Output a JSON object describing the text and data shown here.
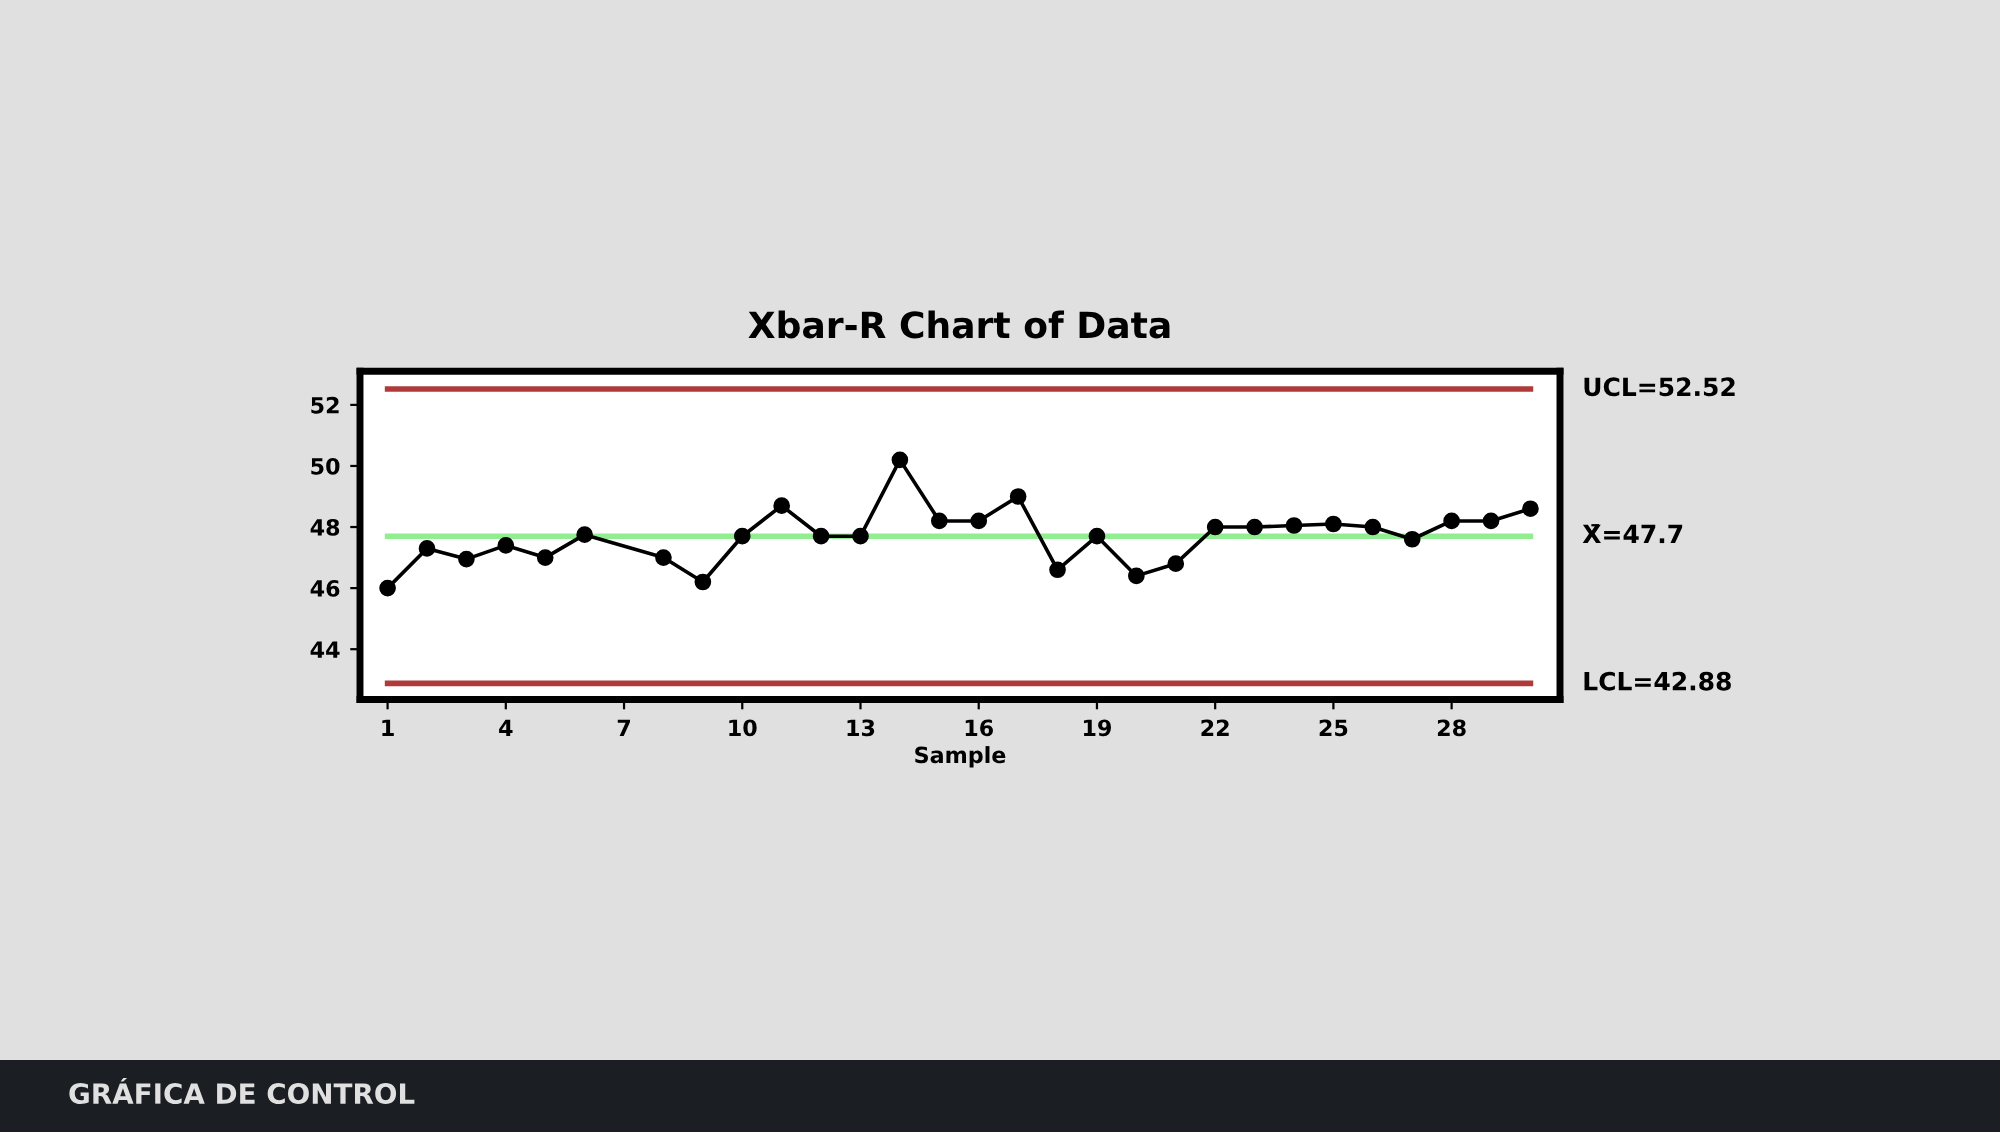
{
  "chart_data": {
    "type": "line",
    "title": "Xbar-R Chart of Data",
    "xlabel": "Sample",
    "x": [
      1,
      2,
      3,
      4,
      5,
      6,
      8,
      9,
      10,
      11,
      12,
      13,
      14,
      15,
      16,
      17,
      18,
      19,
      20,
      21,
      22,
      23,
      24,
      25,
      26,
      27,
      28,
      29,
      30
    ],
    "series": [
      {
        "color": "#000000",
        "values": [
          46.0,
          47.3,
          46.95,
          47.4,
          47.0,
          47.75,
          47.0,
          46.2,
          47.7,
          48.7,
          47.7,
          47.7,
          50.2,
          48.2,
          48.2,
          49.0,
          46.6,
          47.7,
          46.4,
          46.8,
          48.0,
          48.0,
          48.05,
          48.1,
          48.0,
          47.6,
          48.2,
          48.2,
          48.6
        ]
      }
    ],
    "marker": "circle",
    "line_style": "solid",
    "xlim": [
      0.3,
      30.75
    ],
    "xticks": [
      1,
      4,
      7,
      10,
      13,
      16,
      19,
      22,
      25,
      28
    ],
    "ylim": [
      42.35,
      53.1
    ],
    "yticks": [
      44,
      46,
      48,
      50,
      52
    ],
    "grid": false,
    "legend": false,
    "ref_lines": [
      {
        "axis": "y",
        "value": 52.52,
        "label": "UCL=52.52",
        "color": "#b03a3a"
      },
      {
        "axis": "y",
        "value": 47.7,
        "label": "X̄=47.7",
        "color": "#90ee90"
      },
      {
        "axis": "y",
        "value": 42.88,
        "label": "LCL=42.88",
        "color": "#b03a3a"
      }
    ],
    "annotations": [
      "GRÁFICA DE CONTROL"
    ]
  }
}
